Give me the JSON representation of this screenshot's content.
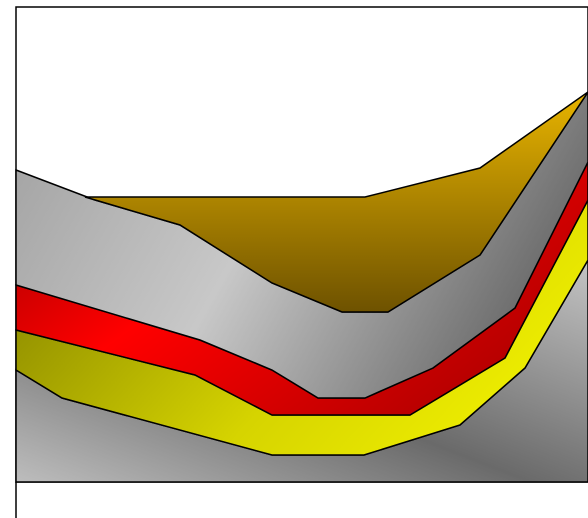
{
  "diagram": {
    "type": "geological-cross-section",
    "layers": [
      {
        "name": "base-bedrock",
        "colors": [
          "#bdbdbd",
          "#6a6a6a",
          "#bdbdbd"
        ]
      },
      {
        "name": "yellow-stratum",
        "colors": [
          "#8c8a00",
          "#e6e600"
        ]
      },
      {
        "name": "red-stratum",
        "colors": [
          "#b00000",
          "#ff0000"
        ]
      },
      {
        "name": "gray-upper-stratum",
        "colors": [
          "#9a9a9a",
          "#c8c8c8",
          "#6e6e6e"
        ]
      },
      {
        "name": "gold-basin-fill",
        "colors": [
          "#e8b400",
          "#6e5200"
        ]
      }
    ],
    "outline_color": "#000000",
    "background": "#ffffff"
  }
}
